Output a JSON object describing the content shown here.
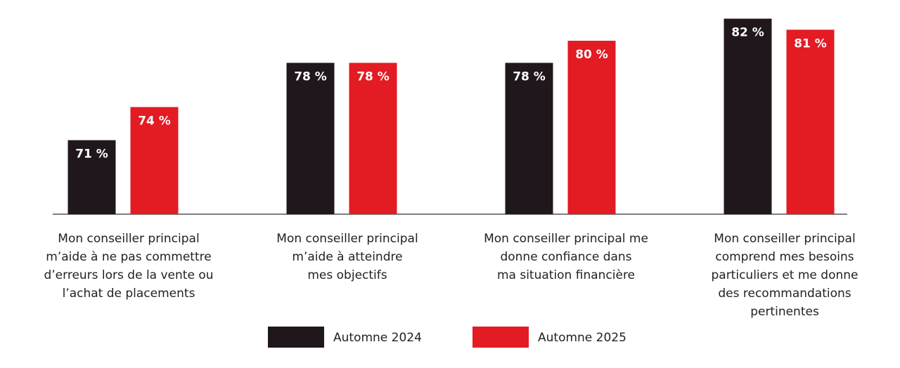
{
  "chart_data": {
    "type": "bar",
    "categories": [
      [
        "Mon conseiller principal",
        "m’aide à ne pas commettre",
        "d’erreurs lors de la vente ou",
        "l’achat de placements"
      ],
      [
        "Mon conseiller principal",
        "m’aide à atteindre",
        "mes objectifs"
      ],
      [
        "Mon conseiller principal me",
        "donne confiance dans",
        "ma situation financière"
      ],
      [
        "Mon conseiller principal",
        "comprend mes besoins",
        "particuliers et me donne",
        "des recommandations",
        "pertinentes"
      ]
    ],
    "series": [
      {
        "name": "Automne 2024",
        "color": "#1f171c",
        "values": [
          71,
          78,
          78,
          82
        ],
        "value_labels": [
          "71 %",
          "78 %",
          "78 %",
          "82 %"
        ]
      },
      {
        "name": "Automne 2025",
        "color": "#e31b23",
        "values": [
          74,
          78,
          80,
          81
        ],
        "value_labels": [
          "74 %",
          "78 %",
          "80 %",
          "81 %"
        ]
      }
    ],
    "ylim": [
      64.3,
      83
    ]
  }
}
